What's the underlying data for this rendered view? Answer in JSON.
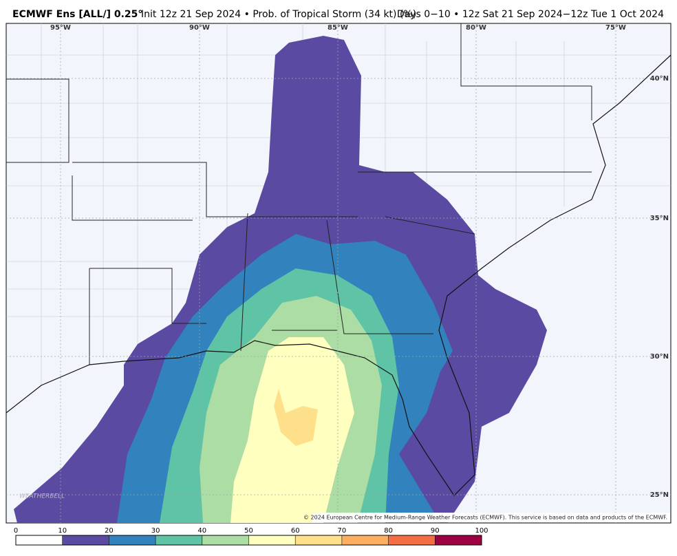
{
  "header": {
    "title_bold": "ECMWF Ens [ALL/] 0.25°",
    "title_rest": "Init 12z 21 Sep 2024 • Prob. of Tropical Storm (34 kt) (%)",
    "valid": "Days 0−10 • 12z Sat 21 Sep 2024−12z Tue 1 Oct 2024"
  },
  "map": {
    "lon_labels": [
      "95°W",
      "90°W",
      "85°W",
      "80°W",
      "75°W"
    ],
    "lat_labels": [
      "40°N",
      "35°N",
      "30°N",
      "25°N"
    ],
    "logo": "WEATHERBELL",
    "credit": "© 2024 European Centre for Medium-Range Weather Forecasts (ECMWF). This service is based on data and products of the ECMWF."
  },
  "colorbar": {
    "levels": [
      0,
      10,
      20,
      30,
      40,
      50,
      60,
      70,
      80,
      90,
      100
    ],
    "colors": [
      "#ffffff",
      "#5a4aa2",
      "#3182bd",
      "#5fc3a5",
      "#abdda4",
      "#ffffbf",
      "#fee08b",
      "#fdae61",
      "#f46d43",
      "#9e0142"
    ]
  }
}
